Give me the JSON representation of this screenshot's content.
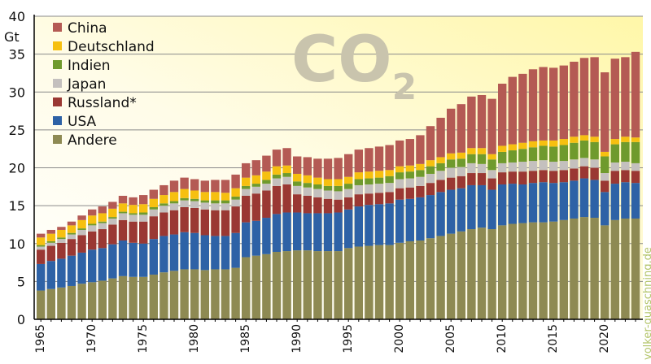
{
  "chart_data": {
    "type": "bar",
    "stacked": true,
    "title": "CO2",
    "title_main": "CO",
    "title_sub": "2",
    "ylabel": "Gt",
    "ylim": [
      0,
      40
    ],
    "yticks": [
      0,
      5,
      10,
      15,
      20,
      25,
      30,
      35,
      40
    ],
    "xtick_years": [
      1965,
      1970,
      1975,
      1980,
      1985,
      1990,
      1995,
      2000,
      2005,
      2010,
      2015,
      2020
    ],
    "watermark": "volker-quaschning.de",
    "legend_position": "top-left",
    "categories": [
      1965,
      1966,
      1967,
      1968,
      1969,
      1970,
      1971,
      1972,
      1973,
      1974,
      1975,
      1976,
      1977,
      1978,
      1979,
      1980,
      1981,
      1982,
      1983,
      1984,
      1985,
      1986,
      1987,
      1988,
      1989,
      1990,
      1991,
      1992,
      1993,
      1994,
      1995,
      1996,
      1997,
      1998,
      1999,
      2000,
      2001,
      2002,
      2003,
      2004,
      2005,
      2006,
      2007,
      2008,
      2009,
      2010,
      2011,
      2012,
      2013,
      2014,
      2015,
      2016,
      2017,
      2018,
      2019,
      2020,
      2021,
      2022,
      2023
    ],
    "series": [
      {
        "name": "Andere",
        "color": "#8e8a53",
        "values": [
          3.8,
          4.0,
          4.2,
          4.4,
          4.7,
          4.9,
          5.1,
          5.4,
          5.7,
          5.6,
          5.6,
          5.9,
          6.2,
          6.4,
          6.6,
          6.6,
          6.5,
          6.6,
          6.6,
          6.8,
          8.2,
          8.4,
          8.6,
          8.9,
          9.0,
          9.1,
          9.1,
          9.0,
          9.0,
          9.0,
          9.4,
          9.6,
          9.7,
          9.8,
          9.8,
          10.1,
          10.3,
          10.4,
          10.7,
          11.0,
          11.3,
          11.6,
          11.9,
          12.1,
          11.9,
          12.4,
          12.6,
          12.7,
          12.8,
          12.8,
          12.9,
          13.1,
          13.3,
          13.5,
          13.4,
          12.4,
          13.1,
          13.3,
          13.3
        ]
      },
      {
        "name": "USA",
        "color": "#2e62a6",
        "values": [
          3.5,
          3.7,
          3.8,
          4.0,
          4.1,
          4.3,
          4.3,
          4.5,
          4.7,
          4.5,
          4.4,
          4.7,
          4.8,
          4.8,
          4.9,
          4.8,
          4.6,
          4.4,
          4.4,
          4.6,
          4.6,
          4.6,
          4.8,
          5.0,
          5.1,
          5.0,
          4.9,
          5.0,
          5.0,
          5.1,
          5.1,
          5.3,
          5.4,
          5.4,
          5.5,
          5.7,
          5.6,
          5.7,
          5.7,
          5.8,
          5.8,
          5.7,
          5.8,
          5.6,
          5.2,
          5.4,
          5.3,
          5.1,
          5.2,
          5.3,
          5.1,
          5.0,
          5.0,
          5.1,
          5.0,
          4.4,
          4.8,
          4.8,
          4.7
        ]
      },
      {
        "name": "Russland*",
        "color": "#9a3833",
        "values": [
          1.9,
          2.0,
          2.1,
          2.2,
          2.3,
          2.4,
          2.5,
          2.6,
          2.7,
          2.8,
          2.9,
          3.0,
          3.1,
          3.2,
          3.3,
          3.3,
          3.4,
          3.4,
          3.4,
          3.5,
          3.5,
          3.6,
          3.6,
          3.7,
          3.7,
          2.4,
          2.3,
          2.1,
          1.9,
          1.7,
          1.6,
          1.6,
          1.5,
          1.5,
          1.5,
          1.5,
          1.5,
          1.5,
          1.6,
          1.6,
          1.6,
          1.6,
          1.6,
          1.6,
          1.5,
          1.6,
          1.6,
          1.7,
          1.6,
          1.6,
          1.6,
          1.6,
          1.6,
          1.6,
          1.6,
          1.5,
          1.7,
          1.6,
          1.6
        ]
      },
      {
        "name": "Japan",
        "color": "#c4c0be",
        "values": [
          0.4,
          0.4,
          0.5,
          0.6,
          0.7,
          0.8,
          0.8,
          0.8,
          0.9,
          0.9,
          0.9,
          0.9,
          0.9,
          0.9,
          0.9,
          0.9,
          0.9,
          0.9,
          0.9,
          0.9,
          0.9,
          0.9,
          0.9,
          1.0,
          1.0,
          1.1,
          1.1,
          1.1,
          1.1,
          1.1,
          1.1,
          1.2,
          1.2,
          1.2,
          1.2,
          1.2,
          1.2,
          1.2,
          1.2,
          1.2,
          1.3,
          1.2,
          1.3,
          1.2,
          1.1,
          1.2,
          1.2,
          1.3,
          1.3,
          1.3,
          1.2,
          1.2,
          1.2,
          1.1,
          1.1,
          1.0,
          1.1,
          1.1,
          1.0
        ]
      },
      {
        "name": "Indien",
        "color": "#6f9a2d",
        "values": [
          0.2,
          0.2,
          0.2,
          0.2,
          0.2,
          0.2,
          0.2,
          0.2,
          0.2,
          0.2,
          0.3,
          0.3,
          0.3,
          0.3,
          0.3,
          0.3,
          0.3,
          0.4,
          0.4,
          0.4,
          0.4,
          0.4,
          0.5,
          0.5,
          0.5,
          0.6,
          0.6,
          0.6,
          0.6,
          0.7,
          0.7,
          0.8,
          0.8,
          0.8,
          0.9,
          0.9,
          0.9,
          0.9,
          1.0,
          1.0,
          1.1,
          1.1,
          1.2,
          1.3,
          1.4,
          1.5,
          1.6,
          1.7,
          1.8,
          1.9,
          2.0,
          2.1,
          2.2,
          2.3,
          2.3,
          2.2,
          2.4,
          2.6,
          2.8
        ]
      },
      {
        "name": "Deutschland",
        "color": "#f6c010",
        "values": [
          1.0,
          1.0,
          1.0,
          1.0,
          1.1,
          1.1,
          1.1,
          1.1,
          1.1,
          1.1,
          1.1,
          1.1,
          1.1,
          1.2,
          1.2,
          1.1,
          1.1,
          1.1,
          1.0,
          1.1,
          1.1,
          1.1,
          1.1,
          1.1,
          1.0,
          1.0,
          1.0,
          0.9,
          0.9,
          0.9,
          0.9,
          0.9,
          0.9,
          0.9,
          0.8,
          0.8,
          0.8,
          0.8,
          0.8,
          0.8,
          0.8,
          0.8,
          0.8,
          0.8,
          0.7,
          0.8,
          0.8,
          0.8,
          0.8,
          0.7,
          0.8,
          0.8,
          0.8,
          0.7,
          0.7,
          0.6,
          0.7,
          0.7,
          0.6
        ]
      },
      {
        "name": "China",
        "color": "#b45a54",
        "values": [
          0.5,
          0.5,
          0.4,
          0.5,
          0.6,
          0.8,
          0.9,
          0.9,
          1.0,
          1.0,
          1.2,
          1.2,
          1.3,
          1.5,
          1.5,
          1.5,
          1.5,
          1.6,
          1.7,
          1.8,
          1.9,
          2.0,
          2.1,
          2.2,
          2.3,
          2.3,
          2.4,
          2.5,
          2.7,
          2.8,
          3.0,
          3.0,
          3.1,
          3.2,
          3.3,
          3.4,
          3.5,
          3.8,
          4.5,
          5.2,
          5.9,
          6.4,
          6.8,
          7.0,
          7.3,
          8.2,
          8.9,
          9.1,
          9.5,
          9.7,
          9.6,
          9.7,
          9.9,
          10.2,
          10.5,
          10.5,
          10.6,
          10.5,
          11.3
        ]
      }
    ]
  }
}
